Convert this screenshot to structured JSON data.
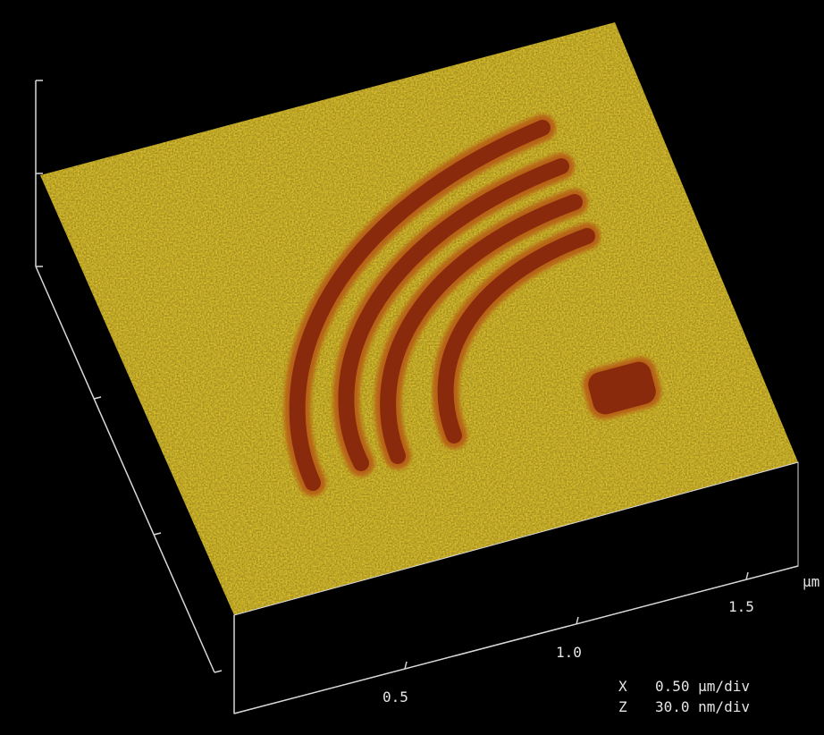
{
  "axis": {
    "x_unit": "µm",
    "x_ticks": [
      "0.5",
      "1.0",
      "1.5"
    ]
  },
  "scale": {
    "x_label": "X",
    "x_value": "0.50 µm/div",
    "z_label": "Z",
    "z_value": "30.0 nm/div"
  },
  "colors": {
    "background": "#000000",
    "surface": "#e1c62f",
    "trench": "#8a2a0c",
    "axis_lines": "#d8d8d8"
  }
}
